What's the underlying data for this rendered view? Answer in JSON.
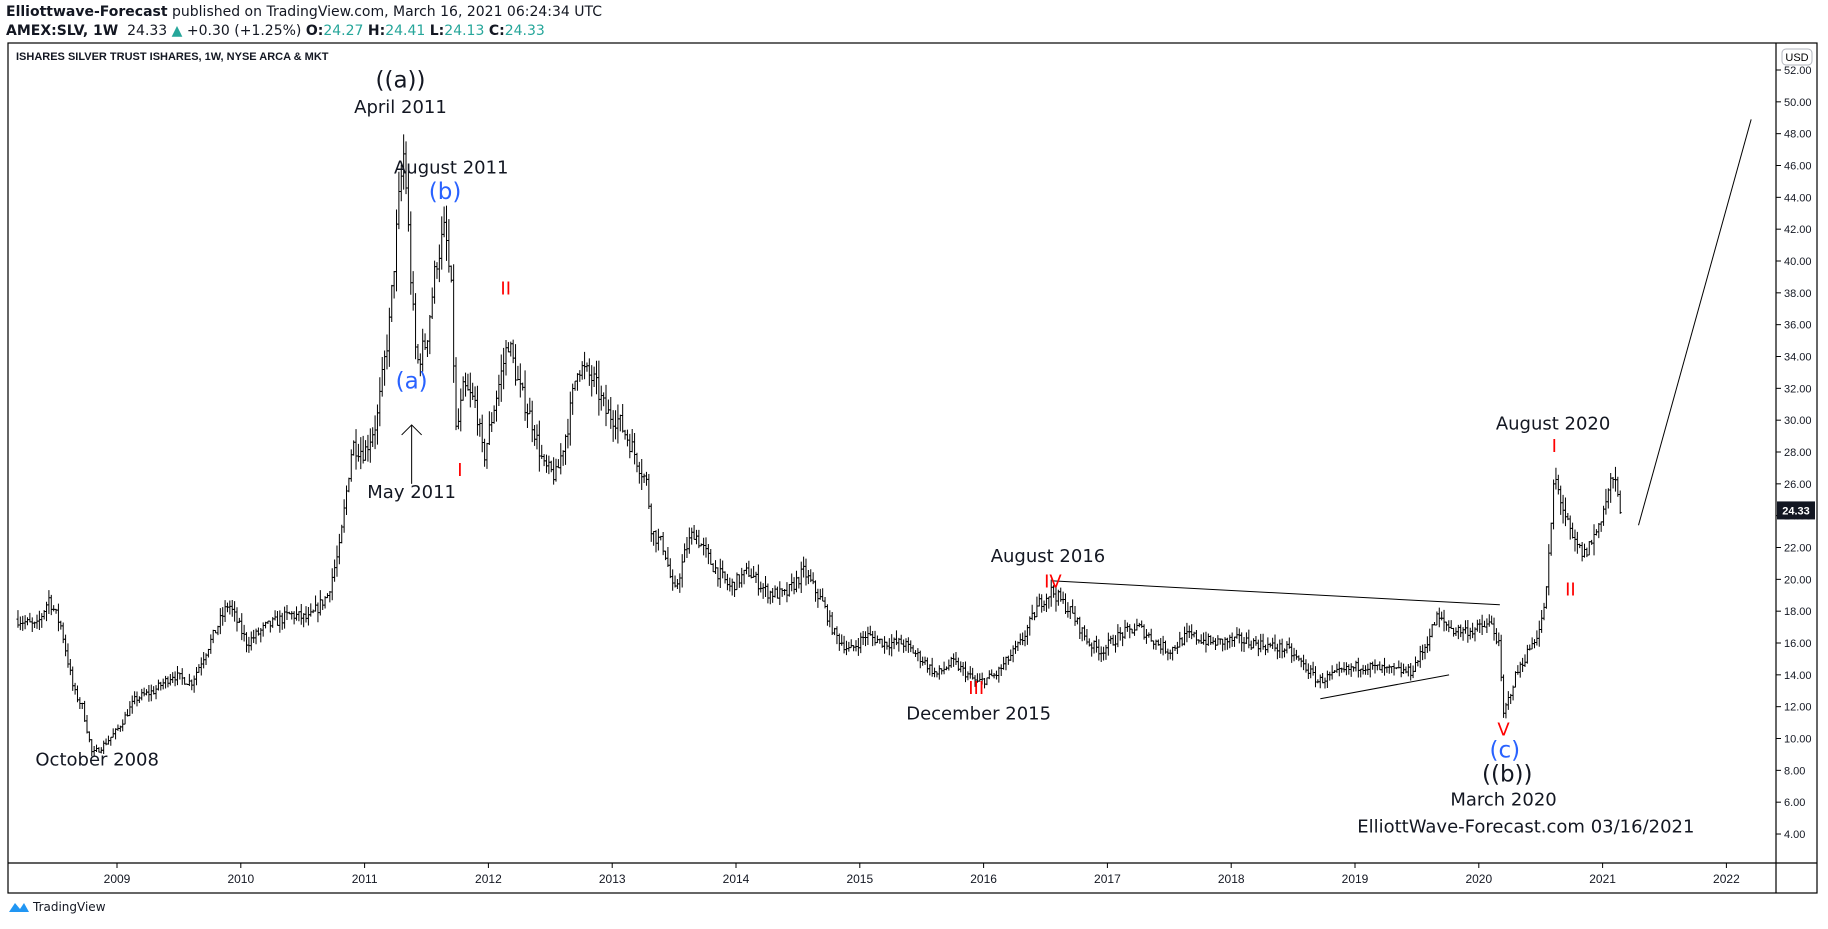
{
  "header": {
    "author": "Elliottwave-Forecast",
    "published": "published on TradingView.com, March 16, 2021 06:24:34 UTC",
    "symbol": "AMEX:SLV, 1W",
    "last": "24.33",
    "change": "+0.30 (+1.25%)",
    "o_label": "O:",
    "o": "24.27",
    "h_label": "H:",
    "h": "24.41",
    "l_label": "L:",
    "l": "24.13",
    "c_label": "C:",
    "c": "24.33",
    "up_color": "#26a69a"
  },
  "footer": {
    "brand": "TradingView",
    "brand_color": "#2196f3"
  },
  "chart_data": {
    "type": "ohlc-bar",
    "title": "ISHARES SILVER TRUST ISHARES, 1W, NYSE ARCA & MKT",
    "currency": "USD",
    "last_price_label": "24.33",
    "ylim": [
      2.5,
      53
    ],
    "xlim": [
      2008.2,
      2022.5
    ],
    "yticks": [
      "52.00",
      "50.00",
      "48.00",
      "46.00",
      "44.00",
      "42.00",
      "40.00",
      "38.00",
      "36.00",
      "34.00",
      "32.00",
      "30.00",
      "28.00",
      "26.00",
      "24.00",
      "22.00",
      "20.00",
      "18.00",
      "16.00",
      "14.00",
      "12.00",
      "10.00",
      "8.00",
      "6.00",
      "4.00"
    ],
    "xticks": [
      "2009",
      "2010",
      "2011",
      "2012",
      "2013",
      "2014",
      "2015",
      "2016",
      "2017",
      "2018",
      "2019",
      "2020",
      "2021",
      "2022"
    ],
    "grid": false,
    "approx_price_path": [
      [
        2008.2,
        17.5
      ],
      [
        2008.35,
        17.0
      ],
      [
        2008.45,
        18.8
      ],
      [
        2008.55,
        17.0
      ],
      [
        2008.65,
        13.0
      ],
      [
        2008.72,
        12.0
      ],
      [
        2008.8,
        9.0
      ],
      [
        2008.88,
        9.5
      ],
      [
        2009.0,
        10.5
      ],
      [
        2009.15,
        12.5
      ],
      [
        2009.3,
        13.0
      ],
      [
        2009.45,
        14.0
      ],
      [
        2009.6,
        13.5
      ],
      [
        2009.75,
        16.0
      ],
      [
        2009.9,
        18.5
      ],
      [
        2010.05,
        16.0
      ],
      [
        2010.2,
        17.0
      ],
      [
        2010.4,
        17.8
      ],
      [
        2010.55,
        17.5
      ],
      [
        2010.7,
        19.0
      ],
      [
        2010.8,
        22.0
      ],
      [
        2010.9,
        28.5
      ],
      [
        2011.0,
        28.0
      ],
      [
        2011.1,
        30.0
      ],
      [
        2011.2,
        36.0
      ],
      [
        2011.28,
        44.0
      ],
      [
        2011.32,
        47.0
      ],
      [
        2011.38,
        38.0
      ],
      [
        2011.42,
        33.5
      ],
      [
        2011.5,
        35.0
      ],
      [
        2011.58,
        40.0
      ],
      [
        2011.65,
        42.0
      ],
      [
        2011.7,
        38.0
      ],
      [
        2011.74,
        29.0
      ],
      [
        2011.8,
        32.0
      ],
      [
        2011.9,
        31.0
      ],
      [
        2011.96,
        27.5
      ],
      [
        2012.05,
        31.0
      ],
      [
        2012.12,
        33.5
      ],
      [
        2012.16,
        35.0
      ],
      [
        2012.25,
        32.0
      ],
      [
        2012.35,
        30.0
      ],
      [
        2012.45,
        27.0
      ],
      [
        2012.55,
        26.5
      ],
      [
        2012.65,
        30.0
      ],
      [
        2012.72,
        33.5
      ],
      [
        2012.85,
        32.5
      ],
      [
        2012.95,
        30.5
      ],
      [
        2013.05,
        30.0
      ],
      [
        2013.15,
        28.5
      ],
      [
        2013.28,
        26.0
      ],
      [
        2013.32,
        23.0
      ],
      [
        2013.42,
        22.0
      ],
      [
        2013.5,
        19.0
      ],
      [
        2013.6,
        22.0
      ],
      [
        2013.66,
        23.0
      ],
      [
        2013.8,
        21.0
      ],
      [
        2013.95,
        19.5
      ],
      [
        2014.1,
        20.5
      ],
      [
        2014.25,
        19.2
      ],
      [
        2014.4,
        19.0
      ],
      [
        2014.55,
        20.5
      ],
      [
        2014.7,
        18.5
      ],
      [
        2014.8,
        16.5
      ],
      [
        2014.92,
        15.5
      ],
      [
        2015.05,
        16.5
      ],
      [
        2015.2,
        16.0
      ],
      [
        2015.35,
        16.0
      ],
      [
        2015.5,
        15.0
      ],
      [
        2015.62,
        14.0
      ],
      [
        2015.75,
        14.8
      ],
      [
        2015.95,
        13.5
      ],
      [
        2016.1,
        14.0
      ],
      [
        2016.3,
        16.0
      ],
      [
        2016.45,
        18.5
      ],
      [
        2016.55,
        19.3
      ],
      [
        2016.7,
        18.0
      ],
      [
        2016.85,
        16.0
      ],
      [
        2016.95,
        15.5
      ],
      [
        2017.1,
        16.5
      ],
      [
        2017.25,
        17.0
      ],
      [
        2017.4,
        16.0
      ],
      [
        2017.5,
        15.5
      ],
      [
        2017.65,
        16.5
      ],
      [
        2017.85,
        16.0
      ],
      [
        2018.05,
        16.2
      ],
      [
        2018.25,
        15.9
      ],
      [
        2018.45,
        15.6
      ],
      [
        2018.6,
        14.5
      ],
      [
        2018.7,
        13.6
      ],
      [
        2018.9,
        14.2
      ],
      [
        2019.05,
        14.6
      ],
      [
        2019.25,
        14.3
      ],
      [
        2019.45,
        14.2
      ],
      [
        2019.55,
        15.5
      ],
      [
        2019.66,
        17.6
      ],
      [
        2019.8,
        16.8
      ],
      [
        2019.95,
        16.8
      ],
      [
        2020.1,
        17.2
      ],
      [
        2020.16,
        16.0
      ],
      [
        2020.2,
        11.5
      ],
      [
        2020.3,
        14.0
      ],
      [
        2020.42,
        15.8
      ],
      [
        2020.5,
        17.0
      ],
      [
        2020.55,
        19.5
      ],
      [
        2020.58,
        23.0
      ],
      [
        2020.61,
        26.5
      ],
      [
        2020.68,
        24.5
      ],
      [
        2020.75,
        22.5
      ],
      [
        2020.85,
        21.5
      ],
      [
        2020.95,
        23.0
      ],
      [
        2021.03,
        25.0
      ],
      [
        2021.08,
        26.5
      ],
      [
        2021.15,
        24.33
      ]
    ],
    "annotations": [
      {
        "text": "((a))",
        "color": "#131722",
        "date": 2011.29,
        "price": 50.9,
        "size": "big"
      },
      {
        "text": "April 2011",
        "color": "#131722",
        "date": 2011.29,
        "price": 49.3
      },
      {
        "text": "August 2011",
        "color": "#131722",
        "date": 2011.7,
        "price": 45.5
      },
      {
        "text": "(b)",
        "color": "#2962ff",
        "date": 2011.65,
        "price": 43.9,
        "size": "big"
      },
      {
        "text": "II",
        "color": "#ff0000",
        "date": 2012.14,
        "price": 37.9
      },
      {
        "text": "(a)",
        "color": "#2962ff",
        "date": 2011.38,
        "price": 32.0,
        "size": "big"
      },
      {
        "text": "I",
        "color": "#ff0000",
        "date": 2011.77,
        "price": 26.5
      },
      {
        "text": "May 2011",
        "color": "#131722",
        "date": 2011.38,
        "price": 25.1
      },
      {
        "text": "October 2008",
        "color": "#131722",
        "date": 2008.84,
        "price": 8.3
      },
      {
        "text": "August 2016",
        "color": "#131722",
        "date": 2016.52,
        "price": 21.1
      },
      {
        "text": "IV",
        "color": "#ff0000",
        "date": 2016.56,
        "price": 19.5
      },
      {
        "text": "III",
        "color": "#ff0000",
        "date": 2015.94,
        "price": 12.8
      },
      {
        "text": "December  2015",
        "color": "#131722",
        "date": 2015.96,
        "price": 11.2
      },
      {
        "text": "August 2020",
        "color": "#131722",
        "date": 2020.6,
        "price": 29.4
      },
      {
        "text": "I",
        "color": "#ff0000",
        "date": 2020.61,
        "price": 28.0
      },
      {
        "text": "II",
        "color": "#ff0000",
        "date": 2020.74,
        "price": 19.0
      },
      {
        "text": "V",
        "color": "#ff0000",
        "date": 2020.2,
        "price": 10.2
      },
      {
        "text": "(c)",
        "color": "#2962ff",
        "date": 2020.21,
        "price": 8.8,
        "size": "big"
      },
      {
        "text": "((b))",
        "color": "#131722",
        "date": 2020.23,
        "price": 7.3,
        "size": "big"
      },
      {
        "text": "March 2020",
        "color": "#131722",
        "date": 2020.2,
        "price": 5.8
      },
      {
        "text": "ElliottWave-Forecast.com 03/16/2021",
        "color": "#131722",
        "date": 2020.38,
        "price": 4.1
      }
    ],
    "trendlines": [
      {
        "name": "triangle-upper",
        "from": [
          2016.56,
          19.9
        ],
        "to": [
          2020.17,
          18.4
        ]
      },
      {
        "name": "triangle-lower",
        "from": [
          2018.72,
          12.5
        ],
        "to": [
          2019.76,
          14.0
        ]
      },
      {
        "name": "projection",
        "from": [
          2021.29,
          23.4
        ],
        "to": [
          2022.2,
          48.9
        ]
      },
      {
        "name": "may-2011-arrow",
        "from": [
          2011.38,
          26.0
        ],
        "to": [
          2011.38,
          29.7
        ],
        "arrow": true
      }
    ]
  }
}
